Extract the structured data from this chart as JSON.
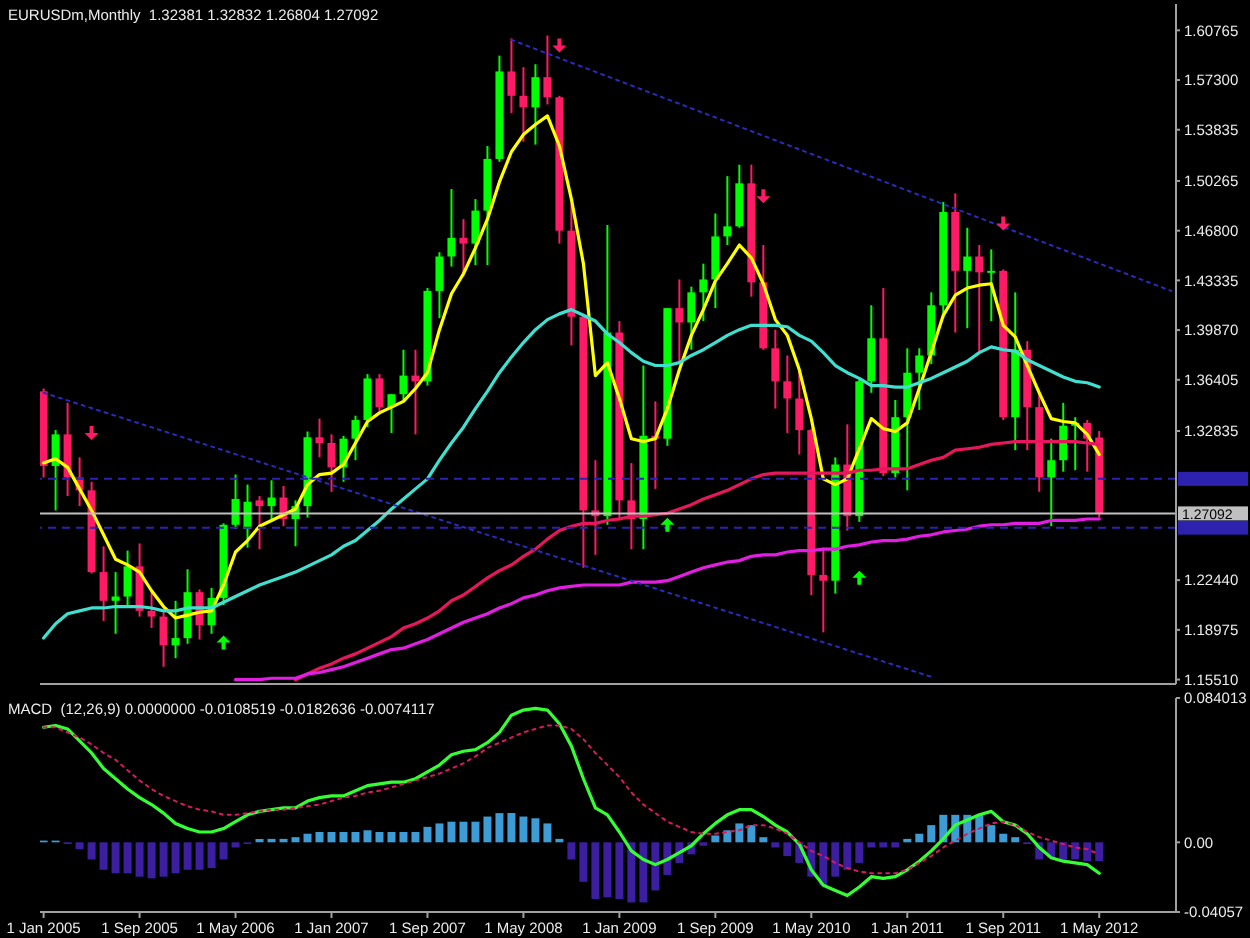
{
  "chart_data": [
    {
      "type": "candlestick",
      "title": "EURUSDm,Monthly  1.32381 1.32832 1.26804 1.27092",
      "x": [
        "2005-01",
        "2005-02",
        "2005-03",
        "2005-04",
        "2005-05",
        "2005-06",
        "2005-07",
        "2005-08",
        "2005-09",
        "2005-10",
        "2005-11",
        "2005-12",
        "2006-01",
        "2006-02",
        "2006-03",
        "2006-04",
        "2006-05",
        "2006-06",
        "2006-07",
        "2006-08",
        "2006-09",
        "2006-10",
        "2006-11",
        "2006-12",
        "2007-01",
        "2007-02",
        "2007-03",
        "2007-04",
        "2007-05",
        "2007-06",
        "2007-07",
        "2007-08",
        "2007-09",
        "2007-10",
        "2007-11",
        "2007-12",
        "2008-01",
        "2008-02",
        "2008-03",
        "2008-04",
        "2008-05",
        "2008-06",
        "2008-07",
        "2008-08",
        "2008-09",
        "2008-10",
        "2008-11",
        "2008-12",
        "2009-01",
        "2009-02",
        "2009-03",
        "2009-04",
        "2009-05",
        "2009-06",
        "2009-07",
        "2009-08",
        "2009-09",
        "2009-10",
        "2009-11",
        "2009-12",
        "2010-01",
        "2010-02",
        "2010-03",
        "2010-04",
        "2010-05",
        "2010-06",
        "2010-07",
        "2010-08",
        "2010-09",
        "2010-10",
        "2010-11",
        "2010-12",
        "2011-01",
        "2011-02",
        "2011-03",
        "2011-04",
        "2011-05",
        "2011-06",
        "2011-07",
        "2011-08",
        "2011-09",
        "2011-10",
        "2011-11",
        "2011-12",
        "2012-01",
        "2012-02",
        "2012-03",
        "2012-04",
        "2012-05"
      ],
      "ohlc": [
        [
          1.356,
          1.358,
          1.296,
          1.304
        ],
        [
          1.304,
          1.329,
          1.273,
          1.326
        ],
        [
          1.326,
          1.348,
          1.283,
          1.296
        ],
        [
          1.296,
          1.31,
          1.276,
          1.287
        ],
        [
          1.287,
          1.293,
          1.229,
          1.23
        ],
        [
          1.23,
          1.248,
          1.196,
          1.21
        ],
        [
          1.21,
          1.23,
          1.187,
          1.213
        ],
        [
          1.213,
          1.245,
          1.206,
          1.234
        ],
        [
          1.234,
          1.25,
          1.199,
          1.203
        ],
        [
          1.203,
          1.216,
          1.191,
          1.199
        ],
        [
          1.199,
          1.202,
          1.164,
          1.179
        ],
        [
          1.179,
          1.21,
          1.17,
          1.184
        ],
        [
          1.184,
          1.232,
          1.18,
          1.216
        ],
        [
          1.216,
          1.218,
          1.183,
          1.193
        ],
        [
          1.193,
          1.219,
          1.187,
          1.212
        ],
        [
          1.212,
          1.264,
          1.207,
          1.263
        ],
        [
          1.263,
          1.298,
          1.26,
          1.281
        ],
        [
          1.26,
          1.291,
          1.247,
          1.279
        ],
        [
          1.28,
          1.283,
          1.246,
          1.276
        ],
        [
          1.276,
          1.294,
          1.265,
          1.282
        ],
        [
          1.282,
          1.29,
          1.262,
          1.267
        ],
        [
          1.267,
          1.28,
          1.248,
          1.276
        ],
        [
          1.276,
          1.328,
          1.268,
          1.324
        ],
        [
          1.324,
          1.337,
          1.31,
          1.32
        ],
        [
          1.32,
          1.326,
          1.286,
          1.303
        ],
        [
          1.303,
          1.325,
          1.293,
          1.323
        ],
        [
          1.323,
          1.339,
          1.308,
          1.336
        ],
        [
          1.336,
          1.368,
          1.331,
          1.365
        ],
        [
          1.365,
          1.368,
          1.342,
          1.345
        ],
        [
          1.345,
          1.354,
          1.327,
          1.354
        ],
        [
          1.354,
          1.385,
          1.35,
          1.367
        ],
        [
          1.367,
          1.385,
          1.326,
          1.363
        ],
        [
          1.363,
          1.428,
          1.36,
          1.426
        ],
        [
          1.426,
          1.453,
          1.407,
          1.45
        ],
        [
          1.45,
          1.497,
          1.443,
          1.463
        ],
        [
          1.463,
          1.476,
          1.436,
          1.459
        ],
        [
          1.459,
          1.49,
          1.444,
          1.482
        ],
        [
          1.482,
          1.527,
          1.444,
          1.518
        ],
        [
          1.518,
          1.59,
          1.516,
          1.579
        ],
        [
          1.579,
          1.602,
          1.55,
          1.562
        ],
        [
          1.562,
          1.582,
          1.53,
          1.554
        ],
        [
          1.554,
          1.584,
          1.528,
          1.575
        ],
        [
          1.575,
          1.604,
          1.556,
          1.561
        ],
        [
          1.561,
          1.562,
          1.459,
          1.468
        ],
        [
          1.468,
          1.487,
          1.388,
          1.408
        ],
        [
          1.408,
          1.409,
          1.233,
          1.273
        ],
        [
          1.273,
          1.308,
          1.242,
          1.269
        ],
        [
          1.269,
          1.472,
          1.263,
          1.397
        ],
        [
          1.397,
          1.405,
          1.266,
          1.28
        ],
        [
          1.28,
          1.306,
          1.246,
          1.267
        ],
        [
          1.267,
          1.374,
          1.246,
          1.325
        ],
        [
          1.325,
          1.349,
          1.288,
          1.323
        ],
        [
          1.323,
          1.414,
          1.318,
          1.414
        ],
        [
          1.414,
          1.434,
          1.375,
          1.404
        ],
        [
          1.404,
          1.429,
          1.385,
          1.425
        ],
        [
          1.425,
          1.445,
          1.405,
          1.434
        ],
        [
          1.434,
          1.48,
          1.414,
          1.464
        ],
        [
          1.464,
          1.506,
          1.458,
          1.471
        ],
        [
          1.471,
          1.514,
          1.47,
          1.501
        ],
        [
          1.501,
          1.514,
          1.422,
          1.432
        ],
        [
          1.432,
          1.458,
          1.385,
          1.386
        ],
        [
          1.386,
          1.399,
          1.344,
          1.363
        ],
        [
          1.363,
          1.381,
          1.327,
          1.351
        ],
        [
          1.351,
          1.37,
          1.312,
          1.329
        ],
        [
          1.329,
          1.33,
          1.214,
          1.228
        ],
        [
          1.228,
          1.247,
          1.188,
          1.224
        ],
        [
          1.224,
          1.31,
          1.215,
          1.305
        ],
        [
          1.305,
          1.333,
          1.259,
          1.269
        ],
        [
          1.269,
          1.364,
          1.265,
          1.363
        ],
        [
          1.363,
          1.416,
          1.355,
          1.393
        ],
        [
          1.393,
          1.428,
          1.297,
          1.299
        ],
        [
          1.299,
          1.35,
          1.296,
          1.338
        ],
        [
          1.338,
          1.386,
          1.287,
          1.369
        ],
        [
          1.369,
          1.386,
          1.343,
          1.381
        ],
        [
          1.381,
          1.425,
          1.375,
          1.416
        ],
        [
          1.416,
          1.488,
          1.407,
          1.481
        ],
        [
          1.481,
          1.494,
          1.397,
          1.44
        ],
        [
          1.44,
          1.47,
          1.4,
          1.45
        ],
        [
          1.45,
          1.458,
          1.384,
          1.439
        ],
        [
          1.439,
          1.455,
          1.405,
          1.44
        ],
        [
          1.44,
          1.441,
          1.336,
          1.338
        ],
        [
          1.338,
          1.425,
          1.315,
          1.385
        ],
        [
          1.385,
          1.391,
          1.315,
          1.345
        ],
        [
          1.345,
          1.355,
          1.286,
          1.296
        ],
        [
          1.296,
          1.323,
          1.262,
          1.308
        ],
        [
          1.308,
          1.348,
          1.3,
          1.332
        ],
        [
          1.332,
          1.338,
          1.301,
          1.334
        ],
        [
          1.334,
          1.336,
          1.3,
          1.323
        ],
        [
          1.32381,
          1.32832,
          1.26804,
          1.27092
        ]
      ],
      "colors": [
        "#ff1a66",
        "#00ff00",
        "#ff1a66",
        "#ff1a66",
        "#ff1a66",
        "#ff1a66",
        "#00ff00",
        "#00ff00",
        "#ff1a66",
        "#ff1a66",
        "#ff1a66",
        "#00ff00",
        "#00ff00",
        "#ff1a66",
        "#00ff00",
        "#00ff00",
        "#00ff00",
        "#00ff00",
        "#ff1a66",
        "#00ff00",
        "#ff1a66",
        "#00ff00",
        "#00ff00",
        "#ff1a66",
        "#ff1a66",
        "#00ff00",
        "#00ff00",
        "#00ff00",
        "#ff1a66",
        "#00ff00",
        "#00ff00",
        "#ff1a66",
        "#00ff00",
        "#00ff00",
        "#00ff00",
        "#ff1a66",
        "#00ff00",
        "#00ff00",
        "#00ff00",
        "#ff1a66",
        "#ff1a66",
        "#00ff00",
        "#ff1a66",
        "#ff1a66",
        "#ff1a66",
        "#ff1a66",
        "#ff1a66",
        "#00ff00",
        "#ff1a66",
        "#ff1a66",
        "#00ff00",
        "#ff1a66",
        "#00ff00",
        "#ff1a66",
        "#00ff00",
        "#00ff00",
        "#00ff00",
        "#00ff00",
        "#00ff00",
        "#ff1a66",
        "#ff1a66",
        "#ff1a66",
        "#ff1a66",
        "#ff1a66",
        "#ff1a66",
        "#ff1a66",
        "#00ff00",
        "#ff1a66",
        "#00ff00",
        "#00ff00",
        "#ff1a66",
        "#00ff00",
        "#00ff00",
        "#00ff00",
        "#00ff00",
        "#00ff00",
        "#ff1a66",
        "#00ff00",
        "#ff1a66",
        "#00ff00",
        "#ff1a66",
        "#00ff00",
        "#ff1a66",
        "#ff1a66",
        "#00ff00",
        "#00ff00",
        "#00ff00",
        "#ff1a66",
        "#ff1a66"
      ],
      "series": [
        {
          "type": "line",
          "color": "#ffff00",
          "values": [
            1.306,
            1.309,
            1.303,
            1.288,
            1.273,
            1.256,
            1.239,
            1.235,
            1.23,
            1.217,
            1.206,
            1.198,
            1.2,
            1.202,
            1.203,
            1.221,
            1.244,
            1.252,
            1.262,
            1.266,
            1.27,
            1.274,
            1.291,
            1.298,
            1.299,
            1.305,
            1.32,
            1.335,
            1.341,
            1.345,
            1.349,
            1.358,
            1.369,
            1.399,
            1.424,
            1.438,
            1.456,
            1.476,
            1.502,
            1.523,
            1.535,
            1.542,
            1.548,
            1.527,
            1.49,
            1.445,
            1.367,
            1.376,
            1.351,
            1.323,
            1.321,
            1.323,
            1.344,
            1.371,
            1.395,
            1.413,
            1.433,
            1.445,
            1.458,
            1.449,
            1.431,
            1.406,
            1.395,
            1.371,
            1.337,
            1.295,
            1.291,
            1.295,
            1.316,
            1.337,
            1.33,
            1.328,
            1.334,
            1.358,
            1.383,
            1.409,
            1.423,
            1.428,
            1.43,
            1.431,
            1.402,
            1.394,
            1.374,
            1.355,
            1.337,
            1.335,
            1.334,
            1.326,
            1.312
          ]
        },
        {
          "type": "line",
          "color": "#40e0d0",
          "values": [
            1.184,
            1.194,
            1.201,
            1.203,
            1.205,
            1.205,
            1.206,
            1.206,
            1.206,
            1.205,
            1.203,
            1.203,
            1.205,
            1.205,
            1.205,
            1.209,
            1.213,
            1.217,
            1.221,
            1.224,
            1.227,
            1.23,
            1.234,
            1.238,
            1.242,
            1.248,
            1.252,
            1.259,
            1.266,
            1.274,
            1.281,
            1.288,
            1.295,
            1.308,
            1.32,
            1.331,
            1.344,
            1.356,
            1.369,
            1.38,
            1.39,
            1.399,
            1.406,
            1.41,
            1.413,
            1.409,
            1.405,
            1.396,
            1.39,
            1.383,
            1.377,
            1.374,
            1.374,
            1.376,
            1.381,
            1.385,
            1.39,
            1.395,
            1.399,
            1.402,
            1.402,
            1.402,
            1.401,
            1.395,
            1.391,
            1.383,
            1.374,
            1.369,
            1.365,
            1.36,
            1.36,
            1.359,
            1.359,
            1.362,
            1.365,
            1.369,
            1.373,
            1.377,
            1.383,
            1.387,
            1.385,
            1.384,
            1.378,
            1.374,
            1.37,
            1.366,
            1.363,
            1.362,
            1.359
          ]
        },
        {
          "type": "line",
          "color": "#e8175d",
          "values": [
            null,
            null,
            null,
            null,
            null,
            null,
            null,
            null,
            null,
            null,
            null,
            null,
            null,
            null,
            null,
            null,
            null,
            null,
            null,
            null,
            null,
            1.155,
            1.159,
            1.163,
            1.166,
            1.17,
            1.173,
            1.177,
            1.181,
            1.185,
            1.191,
            1.194,
            1.198,
            1.203,
            1.21,
            1.214,
            1.22,
            1.226,
            1.231,
            1.235,
            1.241,
            1.246,
            1.253,
            1.259,
            1.262,
            1.264,
            1.264,
            1.266,
            1.267,
            1.269,
            1.269,
            1.27,
            1.271,
            1.274,
            1.277,
            1.281,
            1.284,
            1.287,
            1.291,
            1.295,
            1.298,
            1.299,
            1.299,
            1.299,
            1.299,
            1.299,
            1.299,
            1.299,
            1.301,
            1.301,
            1.302,
            1.302,
            1.302,
            1.305,
            1.308,
            1.31,
            1.315,
            1.316,
            1.317,
            1.319,
            1.32,
            1.321,
            1.321,
            1.321,
            1.321,
            1.321,
            1.321,
            1.32,
            1.319
          ]
        },
        {
          "type": "line",
          "color": "#e31ee3",
          "values": [
            null,
            null,
            null,
            null,
            null,
            null,
            null,
            null,
            null,
            null,
            null,
            null,
            null,
            null,
            null,
            null,
            1.155,
            1.155,
            1.155,
            1.156,
            1.156,
            1.156,
            1.159,
            1.16,
            1.162,
            1.164,
            1.167,
            1.17,
            1.173,
            1.176,
            1.177,
            1.18,
            1.183,
            1.187,
            1.191,
            1.195,
            1.198,
            1.201,
            1.205,
            1.208,
            1.212,
            1.214,
            1.217,
            1.219,
            1.22,
            1.221,
            1.221,
            1.221,
            1.221,
            1.223,
            1.223,
            1.223,
            1.224,
            1.227,
            1.23,
            1.233,
            1.235,
            1.237,
            1.238,
            1.241,
            1.242,
            1.242,
            1.244,
            1.245,
            1.245,
            1.246,
            1.246,
            1.248,
            1.249,
            1.251,
            1.252,
            1.252,
            1.253,
            1.255,
            1.256,
            1.258,
            1.259,
            1.26,
            1.262,
            1.263,
            1.263,
            1.264,
            1.264,
            1.264,
            1.266,
            1.266,
            1.266,
            1.267,
            1.267
          ]
        },
        {
          "type": "line",
          "color": "#2b2bc0",
          "line_style": "dotted",
          "x": [
            "2008-04",
            "2012-11"
          ],
          "values": [
            1.601,
            1.426
          ]
        },
        {
          "type": "line",
          "color": "#2b2bc0",
          "line_style": "dotted",
          "x": [
            "2005-01",
            "2011-03"
          ],
          "values": [
            1.355,
            1.157
          ]
        },
        {
          "type": "scatter",
          "color": "#ff1a66",
          "marker": "triangle",
          "x": [
            "2005-05",
            "2008-08",
            "2010-01",
            "2011-09"
          ],
          "values": [
            1.327,
            1.597,
            1.492,
            1.473
          ]
        },
        {
          "type": "scatter",
          "color": "#00ff00",
          "marker": "triangle",
          "x": [
            "2006-04",
            "2009-05",
            "2010-09"
          ],
          "values": [
            1.181,
            1.263,
            1.226
          ]
        }
      ],
      "ref_lines": [
        {
          "axis": "y",
          "value": 1.27092,
          "label": "1.27092",
          "color": "#c0c0c0",
          "line_style": "solid"
        },
        {
          "axis": "y",
          "value": 1.295,
          "color": "#2d22b0",
          "line_style": "dashed"
        },
        {
          "axis": "y",
          "value": 1.261,
          "color": "#2d22b0",
          "line_style": "dashed"
        }
      ],
      "xlim": [
        "2004-12-22",
        "2012-11-13"
      ],
      "ylim": [
        1.152,
        1.626
      ],
      "yticks": [
        {
          "value": 1.1551,
          "label": "1.15510"
        },
        1.18975,
        {
          "value": 1.2244,
          "label": "1.22440"
        },
        1.32835,
        1.36405,
        {
          "value": 1.3987,
          "label": "1.39870"
        },
        1.43335,
        {
          "value": 1.468,
          "label": "1.46800"
        },
        1.50265,
        1.53835,
        {
          "value": 1.573,
          "label": "1.57300"
        },
        1.60765
      ],
      "tick_labels": "y"
    },
    {
      "type": "bar",
      "title": "MACD  (12,26,9) 0.0000000 -0.0108519 -0.0182636 -0.0074117",
      "x": [
        "2005-01",
        "2005-02",
        "2005-03",
        "2005-04",
        "2005-05",
        "2005-06",
        "2005-07",
        "2005-08",
        "2005-09",
        "2005-10",
        "2005-11",
        "2005-12",
        "2006-01",
        "2006-02",
        "2006-03",
        "2006-04",
        "2006-05",
        "2006-06",
        "2006-07",
        "2006-08",
        "2006-09",
        "2006-10",
        "2006-11",
        "2006-12",
        "2007-01",
        "2007-02",
        "2007-03",
        "2007-04",
        "2007-05",
        "2007-06",
        "2007-07",
        "2007-08",
        "2007-09",
        "2007-10",
        "2007-11",
        "2007-12",
        "2008-01",
        "2008-02",
        "2008-03",
        "2008-04",
        "2008-05",
        "2008-06",
        "2008-07",
        "2008-08",
        "2008-09",
        "2008-10",
        "2008-11",
        "2008-12",
        "2009-01",
        "2009-02",
        "2009-03",
        "2009-04",
        "2009-05",
        "2009-06",
        "2009-07",
        "2009-08",
        "2009-09",
        "2009-10",
        "2009-11",
        "2009-12",
        "2010-01",
        "2010-02",
        "2010-03",
        "2010-04",
        "2010-05",
        "2010-06",
        "2010-07",
        "2010-08",
        "2010-09",
        "2010-10",
        "2010-11",
        "2010-12",
        "2011-01",
        "2011-02",
        "2011-03",
        "2011-04",
        "2011-05",
        "2011-06",
        "2011-07",
        "2011-08",
        "2011-09",
        "2011-10",
        "2011-11",
        "2011-12",
        "2012-01",
        "2012-02",
        "2012-03",
        "2012-04",
        "2012-05"
      ],
      "series": [
        {
          "type": "bar",
          "colors": [
            "#3d9bd6",
            "#3d9bd6",
            "#3c1fa0",
            "#3c1fa0",
            "#3c1fa0",
            "#3c1fa0",
            "#3c1fa0",
            "#3c1fa0",
            "#3c1fa0",
            "#3c1fa0",
            "#3c1fa0",
            "#3c1fa0",
            "#3c1fa0",
            "#3c1fa0",
            "#3c1fa0",
            "#3c1fa0",
            "#3c1fa0",
            "#3c1fa0",
            "#3d9bd6",
            "#3d9bd6",
            "#3d9bd6",
            "#3d9bd6",
            "#3d9bd6",
            "#3d9bd6",
            "#3d9bd6",
            "#3d9bd6",
            "#3d9bd6",
            "#3d9bd6",
            "#3d9bd6",
            "#3d9bd6",
            "#3d9bd6",
            "#3d9bd6",
            "#3d9bd6",
            "#3d9bd6",
            "#3d9bd6",
            "#3d9bd6",
            "#3d9bd6",
            "#3d9bd6",
            "#3d9bd6",
            "#3d9bd6",
            "#3d9bd6",
            "#3d9bd6",
            "#3d9bd6",
            "#3d9bd6",
            "#3c1fa0",
            "#3c1fa0",
            "#3c1fa0",
            "#3c1fa0",
            "#3c1fa0",
            "#3c1fa0",
            "#3c1fa0",
            "#3c1fa0",
            "#3c1fa0",
            "#3c1fa0",
            "#3c1fa0",
            "#3c1fa0",
            "#3d9bd6",
            "#3d9bd6",
            "#3d9bd6",
            "#3d9bd6",
            "#3d9bd6",
            "#3c1fa0",
            "#3c1fa0",
            "#3c1fa0",
            "#3c1fa0",
            "#3c1fa0",
            "#3c1fa0",
            "#3c1fa0",
            "#3c1fa0",
            "#3c1fa0",
            "#3c1fa0",
            "#3c1fa0",
            "#3d9bd6",
            "#3d9bd6",
            "#3d9bd6",
            "#3d9bd6",
            "#3d9bd6",
            "#3d9bd6",
            "#3d9bd6",
            "#3d9bd6",
            "#3d9bd6",
            "#3d9bd6",
            "#3c1fa0",
            "#3c1fa0",
            "#3c1fa0",
            "#3c1fa0",
            "#3c1fa0",
            "#3c1fa0",
            "#3c1fa0"
          ],
          "values": [
            0.001,
            0.001,
            -0.001,
            -0.004,
            -0.01,
            -0.016,
            -0.018,
            -0.018,
            -0.02,
            -0.021,
            -0.02,
            -0.018,
            -0.016,
            -0.016,
            -0.015,
            -0.01,
            -0.003,
            -0.001,
            0.002,
            0.002,
            0.002,
            0.003,
            0.005,
            0.006,
            0.006,
            0.006,
            0.006,
            0.007,
            0.006,
            0.006,
            0.006,
            0.006,
            0.009,
            0.011,
            0.012,
            0.012,
            0.012,
            0.015,
            0.017,
            0.017,
            0.015,
            0.014,
            0.011,
            0.002,
            -0.01,
            -0.023,
            -0.033,
            -0.032,
            -0.033,
            -0.035,
            -0.035,
            -0.028,
            -0.019,
            -0.012,
            -0.007,
            -0.002,
            0.004,
            0.007,
            0.011,
            0.01,
            0.003,
            -0.003,
            -0.008,
            -0.012,
            -0.02,
            -0.025,
            -0.02,
            -0.016,
            -0.012,
            -0.003,
            -0.003,
            -0.003,
            0.002,
            0.005,
            0.01,
            0.016,
            0.016,
            0.016,
            0.016,
            0.01,
            0.005,
            0.003,
            -0.001,
            -0.01,
            -0.009,
            -0.01,
            -0.01,
            -0.011,
            -0.011
          ]
        },
        {
          "type": "line",
          "color": "#33ff33",
          "values": [
            0.067,
            0.068,
            0.066,
            0.059,
            0.052,
            0.043,
            0.037,
            0.031,
            0.026,
            0.022,
            0.017,
            0.011,
            0.008,
            0.006,
            0.006,
            0.008,
            0.012,
            0.016,
            0.018,
            0.019,
            0.02,
            0.02,
            0.024,
            0.026,
            0.027,
            0.027,
            0.03,
            0.033,
            0.034,
            0.035,
            0.035,
            0.037,
            0.041,
            0.045,
            0.051,
            0.053,
            0.054,
            0.058,
            0.064,
            0.074,
            0.077,
            0.078,
            0.077,
            0.069,
            0.056,
            0.037,
            0.02,
            0.016,
            0.006,
            -0.005,
            -0.01,
            -0.013,
            -0.01,
            -0.006,
            -0.002,
            0.005,
            0.011,
            0.016,
            0.019,
            0.019,
            0.015,
            0.01,
            0.006,
            -0.001,
            -0.016,
            -0.025,
            -0.028,
            -0.031,
            -0.026,
            -0.02,
            -0.021,
            -0.02,
            -0.016,
            -0.011,
            -0.005,
            0.002,
            0.01,
            0.013,
            0.016,
            0.018,
            0.012,
            0.01,
            0.005,
            -0.003,
            -0.009,
            -0.011,
            -0.012,
            -0.013,
            -0.018
          ]
        },
        {
          "type": "line",
          "color": "#d81b60",
          "line_style": "dotted",
          "values": [
            0.067,
            0.067,
            0.064,
            0.061,
            0.057,
            0.052,
            0.048,
            0.042,
            0.036,
            0.031,
            0.027,
            0.024,
            0.021,
            0.019,
            0.018,
            0.016,
            0.016,
            0.017,
            0.018,
            0.019,
            0.019,
            0.02,
            0.021,
            0.022,
            0.024,
            0.026,
            0.027,
            0.029,
            0.03,
            0.032,
            0.034,
            0.036,
            0.038,
            0.04,
            0.043,
            0.046,
            0.05,
            0.055,
            0.058,
            0.061,
            0.064,
            0.066,
            0.068,
            0.068,
            0.066,
            0.06,
            0.052,
            0.045,
            0.038,
            0.029,
            0.022,
            0.017,
            0.012,
            0.009,
            0.006,
            0.005,
            0.005,
            0.006,
            0.007,
            0.01,
            0.01,
            0.008,
            0.005,
            0.0,
            -0.005,
            -0.008,
            -0.012,
            -0.015,
            -0.017,
            -0.018,
            -0.018,
            -0.018,
            -0.016,
            -0.012,
            -0.008,
            -0.003,
            0.001,
            0.005,
            0.008,
            0.011,
            0.012,
            0.01,
            0.006,
            0.003,
            0.001,
            -0.001,
            -0.003,
            -0.004,
            -0.007
          ]
        }
      ],
      "xlim": [
        "2004-12-22",
        "2012-11-13"
      ],
      "xticks": [
        {
          "value": "2005-01",
          "label": "1 Jan 2005"
        },
        {
          "value": "2005-09",
          "label": "1 Sep 2005"
        },
        {
          "value": "2006-05",
          "label": "1 May 2006"
        },
        {
          "value": "2007-01",
          "label": "1 Jan 2007"
        },
        {
          "value": "2007-09",
          "label": "1 Sep 2007"
        },
        {
          "value": "2008-05",
          "label": "1 May 2008"
        },
        {
          "value": "2009-01",
          "label": "1 Jan 2009"
        },
        {
          "value": "2009-09",
          "label": "1 Sep 2009"
        },
        {
          "value": "2010-05",
          "label": "1 May 2010"
        },
        {
          "value": "2011-01",
          "label": "1 Jan 2011"
        },
        {
          "value": "2011-09",
          "label": "1 Sep 2011"
        },
        {
          "value": "2012-05",
          "label": "1 May 2012"
        }
      ],
      "ylim": [
        -0.04057,
        0.084013
      ],
      "yticks": [
        -0.04057,
        {
          "value": 0,
          "label": "0.00"
        },
        0.084013
      ]
    }
  ]
}
